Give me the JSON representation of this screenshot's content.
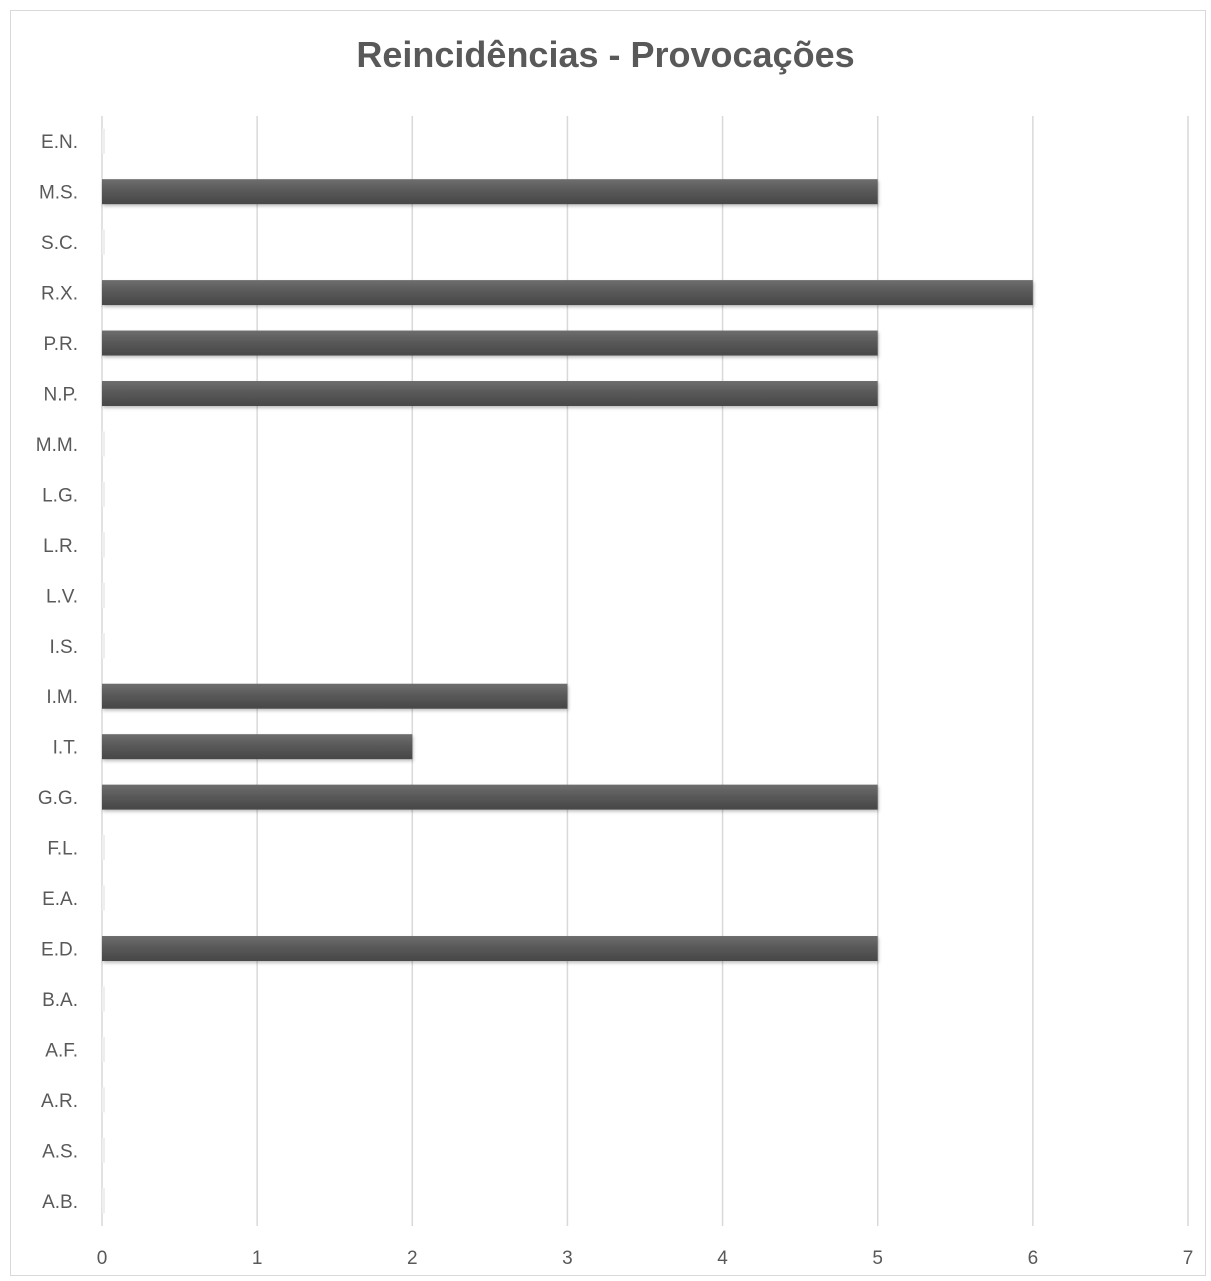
{
  "chart_data": {
    "type": "bar",
    "orientation": "horizontal",
    "title": "Reincidências - Provocações",
    "xlabel": "",
    "ylabel": "",
    "xlim": [
      0,
      7
    ],
    "x_ticks": [
      "0",
      "1",
      "2",
      "3",
      "4",
      "5",
      "6",
      "7"
    ],
    "grid": "vertical",
    "legend": "none",
    "bar_color": "#595959",
    "categories": [
      "A.B.",
      "A.S.",
      "A.R.",
      "A.F.",
      "B.A.",
      "E.D.",
      "E.A.",
      "F.L.",
      "G.G.",
      "I.T.",
      "I.M.",
      "I.S.",
      "L.V.",
      "L.R.",
      "L.G.",
      "M.M.",
      "N.P.",
      "P.R.",
      "R.X.",
      "S.C.",
      "M.S.",
      "E.N."
    ],
    "values": [
      0,
      0,
      0,
      0,
      0,
      5,
      0,
      0,
      5,
      2,
      3,
      0,
      0,
      0,
      0,
      0,
      5,
      5,
      6,
      0,
      5,
      0
    ]
  }
}
